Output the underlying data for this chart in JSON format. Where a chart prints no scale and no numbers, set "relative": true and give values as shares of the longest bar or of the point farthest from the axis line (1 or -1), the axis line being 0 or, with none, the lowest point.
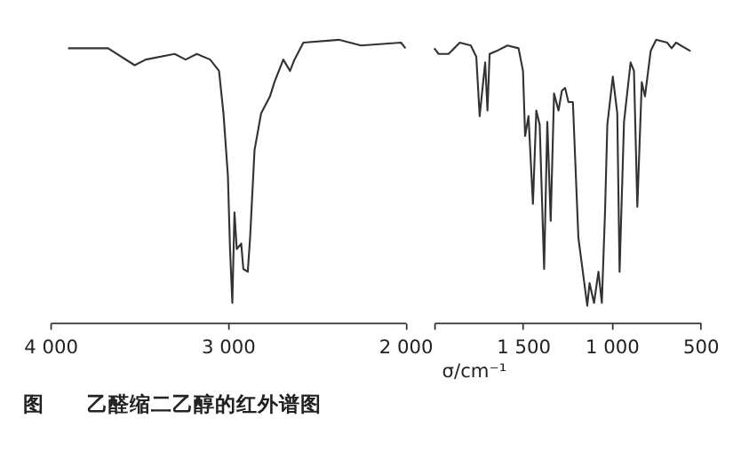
{
  "chart_data": [
    {
      "type": "line",
      "relative": true,
      "title": "图　　乙醛缩二乙醇的红外谱图",
      "grid": false,
      "marker": "none",
      "line_style": "solid",
      "xlim": [
        4000,
        2000
      ],
      "xticks": [
        {
          "value": 4000,
          "label": "4 000"
        },
        {
          "value": 3000,
          "label": "3 000"
        },
        {
          "value": 2000,
          "label": "2 000"
        }
      ],
      "x": [
        3900,
        3675,
        3525,
        3463,
        3300,
        3238,
        3175,
        3100,
        3050,
        3025,
        3000,
        2988,
        2975,
        2963,
        2950,
        2925,
        2913,
        2888,
        2875,
        2850,
        2813,
        2763,
        2738,
        2688,
        2650,
        2625,
        2575,
        2375,
        2250,
        2025,
        2000
      ],
      "series": [
        {
          "color": "#333333",
          "values": [
            0.97,
            0.97,
            0.91,
            0.93,
            0.95,
            0.93,
            0.95,
            0.93,
            0.89,
            0.74,
            0.52,
            0.26,
            0.07,
            0.39,
            0.26,
            0.28,
            0.19,
            0.18,
            0.3,
            0.61,
            0.74,
            0.8,
            0.85,
            0.93,
            0.89,
            0.93,
            0.99,
            1.0,
            0.98,
            0.99,
            0.97
          ]
        }
      ]
    },
    {
      "type": "line",
      "relative": true,
      "xlabel": "σ/cm⁻¹",
      "grid": false,
      "marker": "none",
      "line_style": "solid",
      "xlim": [
        2000,
        500
      ],
      "xticks": [
        {
          "value": 2000,
          "label": null
        },
        {
          "value": 1500,
          "label": "1 500"
        },
        {
          "value": 1000,
          "label": "1 000"
        },
        500
      ],
      "x": [
        2000,
        1975,
        1919,
        1856,
        1794,
        1763,
        1744,
        1713,
        1700,
        1688,
        1650,
        1588,
        1525,
        1500,
        1488,
        1469,
        1444,
        1425,
        1406,
        1381,
        1363,
        1344,
        1325,
        1300,
        1281,
        1263,
        1244,
        1219,
        1188,
        1138,
        1125,
        1100,
        1075,
        1056,
        1038,
        1025,
        994,
        969,
        956,
        931,
        894,
        875,
        856,
        831,
        813,
        781,
        750,
        688,
        663,
        638,
        556
      ],
      "series": [
        {
          "color": "#333333",
          "values": [
            0.97,
            0.95,
            0.95,
            0.99,
            0.98,
            0.94,
            0.73,
            0.92,
            0.75,
            0.95,
            0.96,
            0.98,
            0.97,
            0.89,
            0.66,
            0.73,
            0.42,
            0.75,
            0.7,
            0.19,
            0.71,
            0.36,
            0.81,
            0.75,
            0.82,
            0.83,
            0.78,
            0.78,
            0.3,
            0.06,
            0.14,
            0.07,
            0.18,
            0.07,
            0.39,
            0.7,
            0.87,
            0.74,
            0.18,
            0.71,
            0.92,
            0.89,
            0.41,
            0.85,
            0.8,
            0.96,
            1.0,
            0.99,
            0.97,
            0.99,
            0.96
          ]
        }
      ]
    }
  ]
}
